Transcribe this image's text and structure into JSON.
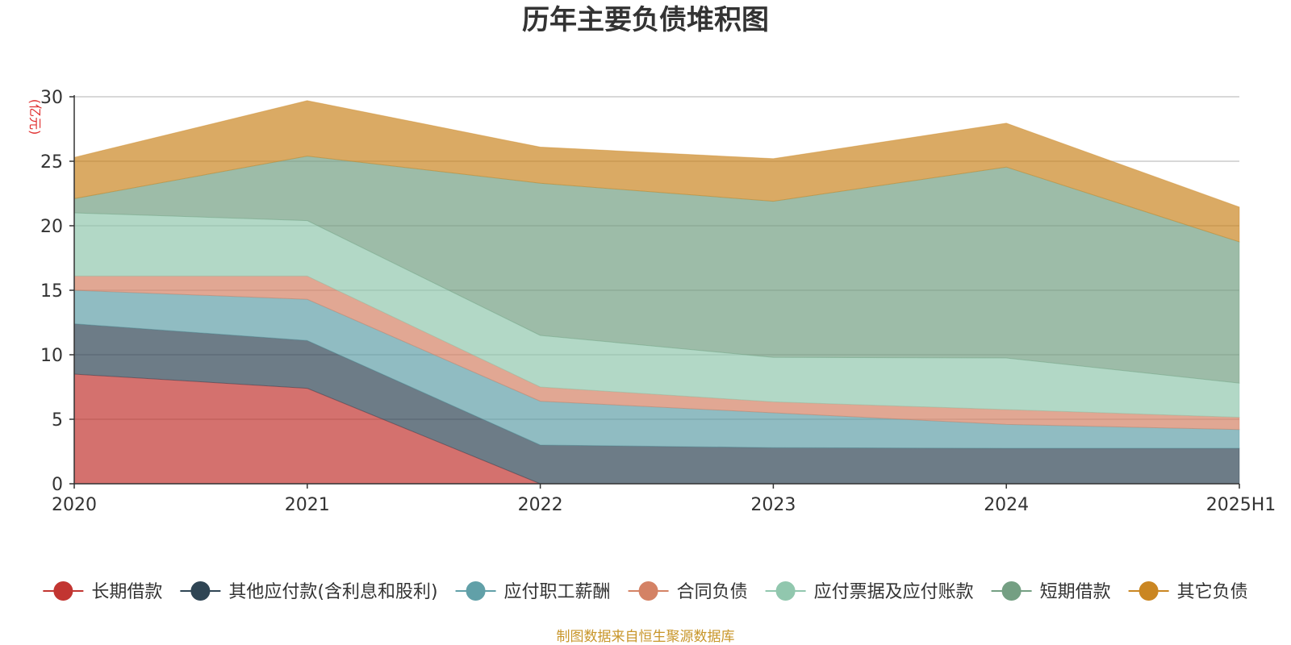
{
  "chart_data": {
    "type": "area",
    "stacked": true,
    "title": "历年主要负债堆积图",
    "unit_label": "(亿元)",
    "source": "制图数据来自恒生聚源数据库",
    "categories": [
      "2020",
      "2021",
      "2022",
      "2023",
      "2024",
      "2025H1"
    ],
    "ylim": [
      0,
      30
    ],
    "yticks": [
      0,
      5,
      10,
      15,
      20,
      25,
      30
    ],
    "grid": true,
    "legend_position": "bottom",
    "series": [
      {
        "name": "长期借款",
        "color": "#c23531",
        "values": [
          8.5,
          7.4,
          0.0,
          0.0,
          0.0,
          0.0
        ]
      },
      {
        "name": "其他应付款(含利息和股利)",
        "color": "#2f4554",
        "values": [
          3.9,
          3.7,
          3.0,
          2.8,
          2.75,
          2.75
        ]
      },
      {
        "name": "应付职工薪酬",
        "color": "#61a0a8",
        "values": [
          2.6,
          3.2,
          3.4,
          2.7,
          1.85,
          1.45
        ]
      },
      {
        "name": "合同负债",
        "color": "#d48265",
        "values": [
          1.1,
          1.8,
          1.1,
          0.85,
          1.15,
          0.95
        ]
      },
      {
        "name": "应付票据及应付账款",
        "color": "#91c7ae",
        "values": [
          4.9,
          4.3,
          4.0,
          3.45,
          4.0,
          2.65
        ]
      },
      {
        "name": "短期借款",
        "color": "#749f83",
        "values": [
          1.1,
          5.0,
          11.8,
          12.1,
          14.8,
          10.95
        ]
      },
      {
        "name": "其它负债",
        "color": "#ca8622",
        "values": [
          3.2,
          4.3,
          2.8,
          3.3,
          3.4,
          2.7
        ]
      }
    ]
  }
}
